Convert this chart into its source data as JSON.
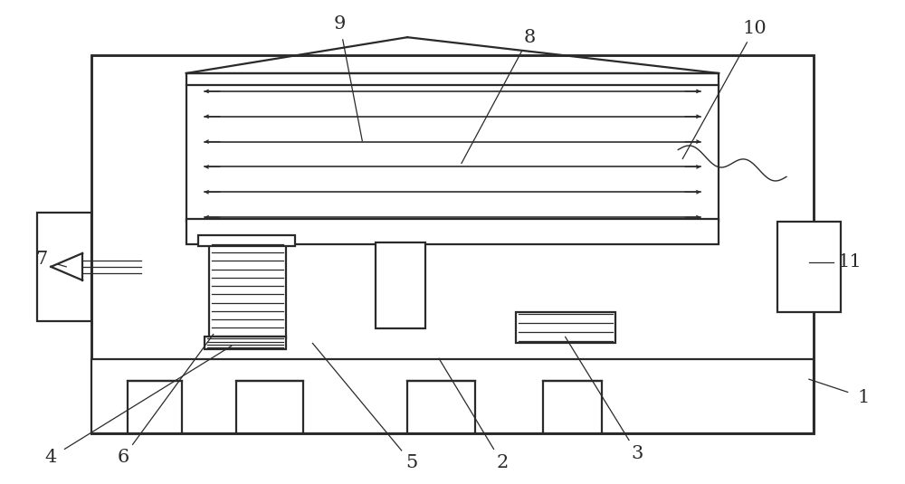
{
  "bg_color": "#ffffff",
  "lc": "#2a2a2a",
  "lw": 1.6,
  "tlw": 0.9,
  "fs": 15
}
